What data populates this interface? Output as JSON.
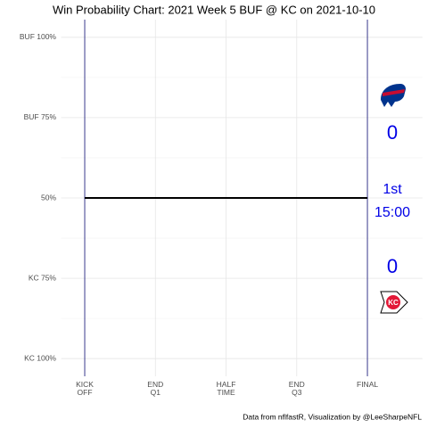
{
  "chart_data": {
    "type": "line",
    "title": "Win Probability Chart: 2021 Week 5 BUF @ KC on 2021-10-10",
    "caption": "Data from nflfastR, Visualization by @LeeSharpeNFL",
    "x": [
      0,
      3600
    ],
    "values": [
      50,
      50
    ],
    "color": "#000000",
    "xlim": [
      -300,
      4300
    ],
    "xticks": [
      {
        "value": 0,
        "label": "KICK OFF"
      },
      {
        "value": 900,
        "label": "END Q1"
      },
      {
        "value": 1800,
        "label": "HALF TIME"
      },
      {
        "value": 2700,
        "label": "END Q3"
      },
      {
        "value": 3600,
        "label": "FINAL"
      }
    ],
    "ylim": [
      -5.5,
      105.5
    ],
    "yticks": [
      {
        "value": 100,
        "label": "BUF 100%"
      },
      {
        "value": 75,
        "label": "BUF 75%"
      },
      {
        "value": 50,
        "label": "50%"
      },
      {
        "value": 25,
        "label": "KC 75%"
      },
      {
        "value": 0,
        "label": "KC 100%"
      }
    ],
    "minor_yticks": [
      87.5,
      62.5,
      37.5,
      12.5
    ],
    "grid": true,
    "vlines": [
      0,
      3600
    ],
    "vline_color": "#3a3a8c",
    "scoreboard": {
      "away_score": 0,
      "quarter": "1st",
      "clock": "15:00",
      "home_score": 0,
      "color": "#0000e6"
    }
  }
}
